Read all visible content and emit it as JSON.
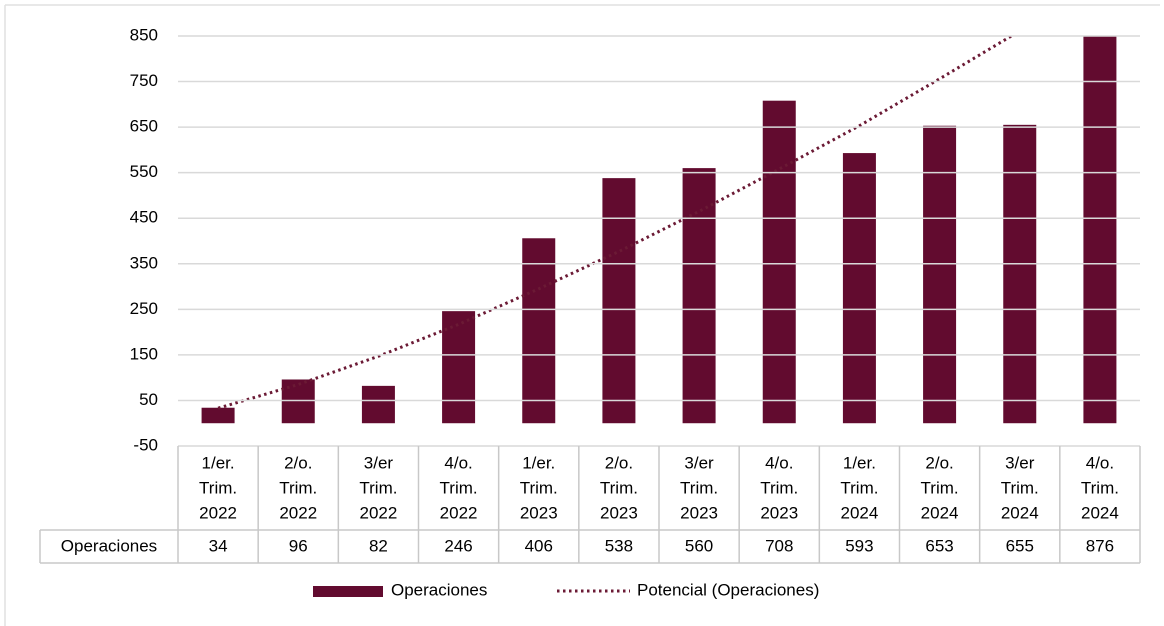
{
  "chart_data": {
    "type": "bar",
    "categories": [
      [
        "1/er.",
        "Trim.",
        "2022"
      ],
      [
        "2/o.",
        "Trim.",
        "2022"
      ],
      [
        "3/er",
        "Trim.",
        "2022"
      ],
      [
        "4/o.",
        "Trim.",
        "2022"
      ],
      [
        "1/er.",
        "Trim.",
        "2023"
      ],
      [
        "2/o.",
        "Trim.",
        "2023"
      ],
      [
        "3/er",
        "Trim.",
        "2023"
      ],
      [
        "4/o.",
        "Trim.",
        "2023"
      ],
      [
        "1/er.",
        "Trim.",
        "2024"
      ],
      [
        "2/o.",
        "Trim.",
        "2024"
      ],
      [
        "3/er",
        "Trim.",
        "2024"
      ],
      [
        "4/o.",
        "Trim.",
        "2024"
      ]
    ],
    "series": [
      {
        "name": "Operaciones",
        "type": "bar",
        "color": "#620b2f",
        "values": [
          34,
          96,
          82,
          246,
          406,
          538,
          560,
          708,
          593,
          653,
          655,
          876
        ]
      },
      {
        "name": "Potencial (Operaciones)",
        "type": "line",
        "style": "dotted",
        "color": "#6b1a35",
        "values": [
          33,
          85,
          147,
          217,
          295,
          377,
          465,
          558,
          653,
          756,
          861,
          970
        ]
      }
    ],
    "ylim": [
      -50,
      850
    ],
    "yticks": [
      -50,
      50,
      150,
      250,
      350,
      450,
      550,
      650,
      750,
      850
    ],
    "grid": true,
    "data_table": true,
    "legend": "bottom"
  }
}
